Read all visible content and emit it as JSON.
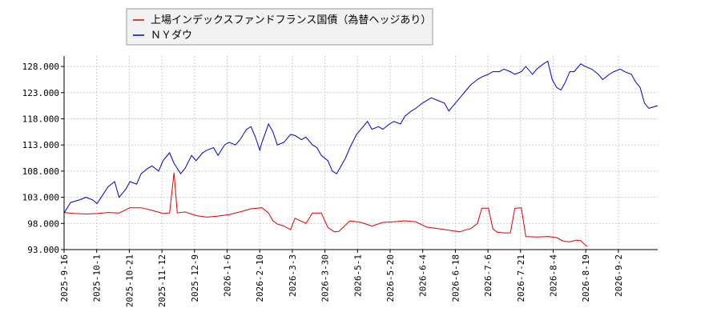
{
  "chart_data": {
    "type": "line",
    "ylim": [
      93.0,
      130.0
    ],
    "yticks": [
      "93.000",
      "98.000",
      "103.000",
      "108.000",
      "113.000",
      "118.000",
      "123.000",
      "128.000"
    ],
    "xticks": [
      "2025-9-16",
      "2025-10-1",
      "2025-10-21",
      "2025-11-12",
      "2025-12-9",
      "2026-1-6",
      "2026-2-10",
      "2026-3-3",
      "2026-3-30",
      "2026-5-1",
      "2026-5-20",
      "2026-6-4",
      "2026-6-18",
      "2026-7-6",
      "2026-7-21",
      "2026-8-4",
      "2026-8-19",
      "2026-9-2"
    ],
    "grid": true,
    "legend_position": "top-left",
    "series": [
      {
        "name": "上場インデックスファンドフランス国債（為替ヘッジあり）",
        "color": "#dd0000",
        "points": [
          [
            0,
            100.1
          ],
          [
            0.5,
            99.9
          ],
          [
            1.0,
            99.8
          ],
          [
            1.5,
            99.9
          ],
          [
            2.0,
            100.1
          ],
          [
            2.5,
            100.0
          ],
          [
            3.0,
            101.0
          ],
          [
            3.5,
            101.0
          ],
          [
            4.0,
            100.5
          ],
          [
            4.5,
            99.9
          ],
          [
            4.8,
            100.0
          ],
          [
            5.0,
            107.7
          ],
          [
            5.15,
            100.0
          ],
          [
            5.5,
            100.2
          ],
          [
            6.0,
            99.5
          ],
          [
            6.5,
            99.2
          ],
          [
            7.0,
            99.4
          ],
          [
            7.5,
            99.7
          ],
          [
            8.0,
            100.2
          ],
          [
            8.5,
            100.8
          ],
          [
            9.0,
            101.0
          ],
          [
            9.3,
            100.0
          ],
          [
            9.5,
            98.5
          ],
          [
            9.7,
            97.9
          ],
          [
            10.0,
            97.5
          ],
          [
            10.3,
            96.8
          ],
          [
            10.5,
            99.0
          ],
          [
            11.0,
            98.0
          ],
          [
            11.3,
            100.0
          ],
          [
            11.7,
            100.0
          ],
          [
            12.0,
            97.2
          ],
          [
            12.3,
            96.4
          ],
          [
            12.5,
            96.5
          ],
          [
            13.0,
            98.5
          ],
          [
            13.5,
            98.2
          ],
          [
            14.0,
            97.5
          ],
          [
            14.5,
            98.2
          ],
          [
            15.0,
            98.3
          ],
          [
            15.5,
            98.5
          ],
          [
            16.0,
            98.3
          ],
          [
            16.5,
            97.3
          ],
          [
            17.0,
            97.0
          ],
          [
            17.5,
            96.7
          ],
          [
            18.0,
            96.4
          ],
          [
            18.2,
            96.7
          ],
          [
            18.5,
            97.0
          ],
          [
            18.8,
            98.0
          ],
          [
            19.0,
            100.9
          ],
          [
            19.3,
            100.9
          ],
          [
            19.5,
            97.0
          ],
          [
            19.7,
            96.3
          ],
          [
            20.0,
            96.2
          ],
          [
            20.3,
            96.2
          ],
          [
            20.5,
            100.9
          ],
          [
            20.8,
            101.0
          ],
          [
            21.0,
            95.5
          ],
          [
            21.5,
            95.4
          ],
          [
            22.0,
            95.5
          ],
          [
            22.4,
            95.3
          ],
          [
            22.7,
            94.6
          ],
          [
            23.0,
            94.5
          ],
          [
            23.3,
            94.8
          ],
          [
            23.5,
            94.7
          ],
          [
            23.7,
            93.9
          ],
          [
            23.8,
            93.6
          ]
        ]
      },
      {
        "name": "ＮＹダウ",
        "color": "#0000cc",
        "points": [
          [
            0,
            100.0
          ],
          [
            0.3,
            102.0
          ],
          [
            0.7,
            102.5
          ],
          [
            1.0,
            103.0
          ],
          [
            1.3,
            102.5
          ],
          [
            1.5,
            101.8
          ],
          [
            2.0,
            105.0
          ],
          [
            2.3,
            106.0
          ],
          [
            2.5,
            103.0
          ],
          [
            2.8,
            104.5
          ],
          [
            3.0,
            106.0
          ],
          [
            3.3,
            105.5
          ],
          [
            3.5,
            107.5
          ],
          [
            3.8,
            108.5
          ],
          [
            4.0,
            109.0
          ],
          [
            4.3,
            108.0
          ],
          [
            4.5,
            110.0
          ],
          [
            4.8,
            111.5
          ],
          [
            5.0,
            109.5
          ],
          [
            5.3,
            107.5
          ],
          [
            5.5,
            108.5
          ],
          [
            5.8,
            111.0
          ],
          [
            6.0,
            110.0
          ],
          [
            6.3,
            111.5
          ],
          [
            6.5,
            112.0
          ],
          [
            6.8,
            112.5
          ],
          [
            7.0,
            111.0
          ],
          [
            7.3,
            113.0
          ],
          [
            7.5,
            113.5
          ],
          [
            7.8,
            113.0
          ],
          [
            8.0,
            114.0
          ],
          [
            8.3,
            116.0
          ],
          [
            8.5,
            116.5
          ],
          [
            8.7,
            114.5
          ],
          [
            8.9,
            112.0
          ],
          [
            9.0,
            113.5
          ],
          [
            9.3,
            117.0
          ],
          [
            9.5,
            115.5
          ],
          [
            9.7,
            113.0
          ],
          [
            10.0,
            113.5
          ],
          [
            10.3,
            115.0
          ],
          [
            10.5,
            114.8
          ],
          [
            10.8,
            114.0
          ],
          [
            11.0,
            114.5
          ],
          [
            11.3,
            113.0
          ],
          [
            11.5,
            112.5
          ],
          [
            11.7,
            111.0
          ],
          [
            12.0,
            110.0
          ],
          [
            12.2,
            108.0
          ],
          [
            12.4,
            107.5
          ],
          [
            12.6,
            109.0
          ],
          [
            12.8,
            110.5
          ],
          [
            13.0,
            112.5
          ],
          [
            13.3,
            115.0
          ],
          [
            13.5,
            116.0
          ],
          [
            13.8,
            117.5
          ],
          [
            14.0,
            116.0
          ],
          [
            14.3,
            116.5
          ],
          [
            14.5,
            116.0
          ],
          [
            14.8,
            117.0
          ],
          [
            15.0,
            117.5
          ],
          [
            15.3,
            117.0
          ],
          [
            15.5,
            118.5
          ],
          [
            15.8,
            119.5
          ],
          [
            16.0,
            120.0
          ],
          [
            16.3,
            121.0
          ],
          [
            16.5,
            121.5
          ],
          [
            16.7,
            122.0
          ],
          [
            17.0,
            121.5
          ],
          [
            17.3,
            121.0
          ],
          [
            17.5,
            119.5
          ],
          [
            17.8,
            121.0
          ],
          [
            18.0,
            122.0
          ],
          [
            18.3,
            123.5
          ],
          [
            18.5,
            124.5
          ],
          [
            18.8,
            125.5
          ],
          [
            19.0,
            126.0
          ],
          [
            19.3,
            126.5
          ],
          [
            19.5,
            127.0
          ],
          [
            19.8,
            127.0
          ],
          [
            20.0,
            127.5
          ],
          [
            20.3,
            127.0
          ],
          [
            20.5,
            126.5
          ],
          [
            20.8,
            127.0
          ],
          [
            21.0,
            128.0
          ],
          [
            21.3,
            126.5
          ],
          [
            21.5,
            127.5
          ],
          [
            21.8,
            128.5
          ],
          [
            22.0,
            129.0
          ],
          [
            22.2,
            125.5
          ],
          [
            22.4,
            124.0
          ],
          [
            22.6,
            123.5
          ],
          [
            22.8,
            125.0
          ],
          [
            23.0,
            127.0
          ],
          [
            23.2,
            127.0
          ],
          [
            23.5,
            128.5
          ],
          [
            23.7,
            128.0
          ],
          [
            24.0,
            127.5
          ],
          [
            24.3,
            126.5
          ],
          [
            24.5,
            125.5
          ],
          [
            24.8,
            126.5
          ],
          [
            25.0,
            127.0
          ],
          [
            25.3,
            127.5
          ],
          [
            25.5,
            127.0
          ],
          [
            25.8,
            126.5
          ],
          [
            26.0,
            125.0
          ],
          [
            26.2,
            124.0
          ],
          [
            26.4,
            121.0
          ],
          [
            26.6,
            120.0
          ],
          [
            27.0,
            120.5
          ]
        ]
      }
    ]
  }
}
